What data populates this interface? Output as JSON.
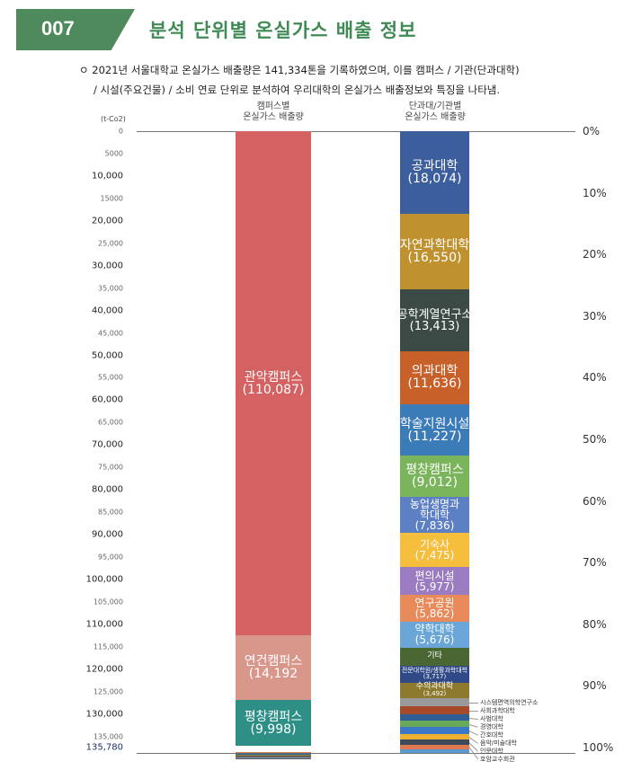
{
  "header": {
    "number": "007",
    "title": "분석 단위별 온실가스 배출 정보"
  },
  "intro": {
    "bullet": "ㅇ",
    "line1": "2021년 서울대학교 온실가스 배출량은 141,334톤을 기록하였으며, 이를 캠퍼스 / 기관(단과대학)",
    "line2": "/ 시설(주요건물) / 소비 연료 단위로 분석하여 우리대학의 온실가스 배출정보와 특징을 나타냄."
  },
  "chart_data": {
    "type": "stacked-bar",
    "unit": "(t-Co2)",
    "ylim": [
      0,
      135780
    ],
    "y_ticks": [
      "0",
      "5000",
      "10,000",
      "15000",
      "20,000",
      "25,000",
      "30,000",
      "35,000",
      "40,000",
      "45,000",
      "50,000",
      "55,000",
      "60,000",
      "65,000",
      "70,000",
      "75,000",
      "80,000",
      "85,000",
      "90,000",
      "95,000",
      "100,000",
      "105,000",
      "110,000",
      "115,000",
      "120,000",
      "125,000",
      "130,000",
      "135,000"
    ],
    "y_max_label": "135,780",
    "pct_ticks": [
      "0%",
      "10%",
      "20%",
      "30%",
      "40%",
      "50%",
      "60%",
      "70%",
      "80%",
      "90%",
      "100%"
    ],
    "bars": [
      {
        "title_line1": "캠퍼스별",
        "title_line2": "온실가스 배출량",
        "segments": [
          {
            "label": "관악캠퍼스",
            "value_label": "(110,087)",
            "value": 110087,
            "color": "#d46262"
          },
          {
            "label": "연건캠퍼스",
            "value_label": "(14,192",
            "value": 14192,
            "color": "#d9978c"
          },
          {
            "label": "평창캠퍼스",
            "value_label": "(9,998)",
            "value": 9998,
            "color": "#2e8f87"
          },
          {
            "label": "",
            "value_label": "",
            "value": 1300,
            "color": "#ffffff"
          },
          {
            "label": "",
            "value_label": "",
            "value": 300,
            "color": "#e0824f"
          },
          {
            "label": "",
            "value_label": "",
            "value": 250,
            "color": "#4a6a8a"
          },
          {
            "label": "",
            "value_label": "",
            "value": 200,
            "color": "#5f7a55"
          },
          {
            "label": "",
            "value_label": "",
            "value": 250,
            "color": "#a6783a"
          },
          {
            "label": "",
            "value_label": "",
            "value": 200,
            "color": "#2f3f6a"
          },
          {
            "label": "",
            "value_label": "",
            "value": 250,
            "color": "#a9b3bf"
          },
          {
            "label": "",
            "value_label": "",
            "value": 200,
            "color": "#3d4a5a"
          }
        ]
      },
      {
        "title_line1": "단과대/기관별",
        "title_line2": "온실가스 배출량",
        "segments": [
          {
            "label": "공과대학",
            "value_label": "(18,074)",
            "value": 18074,
            "color": "#3d5e9c"
          },
          {
            "label": "자연과학대학",
            "value_label": "(16,550)",
            "value": 16550,
            "color": "#c0922f"
          },
          {
            "label": "공학계열연구소",
            "value_label": "(13,413)",
            "value": 13413,
            "color": "#3b4a45"
          },
          {
            "label": "의과대학",
            "value_label": "(11,636)",
            "value": 11636,
            "color": "#c8602a"
          },
          {
            "label": "학술지원시설",
            "value_label": "(11,227)",
            "value": 11227,
            "color": "#3a7bb8"
          },
          {
            "label": "평창캠퍼스",
            "value_label": "(9,012)",
            "value": 9012,
            "color": "#7ab55b"
          },
          {
            "label": "농업생명과학대학",
            "value_label": "(7,836)",
            "value": 7836,
            "color": "#5d7fc4"
          },
          {
            "label": "기숙사",
            "value_label": "(7,475)",
            "value": 7475,
            "color": "#f5be3d"
          },
          {
            "label": "편의시설",
            "value_label": "(5,977)",
            "value": 5977,
            "color": "#9b7bc1"
          },
          {
            "label": "연구공원",
            "value_label": "(5,862)",
            "value": 5862,
            "color": "#e88a5a"
          },
          {
            "label": "약학대학",
            "value_label": "(5,676)",
            "value": 5676,
            "color": "#6aa6d8"
          },
          {
            "label": "기타",
            "value_label": "",
            "value": 3933,
            "color": "#4a6632"
          },
          {
            "label": "전문대학원/생활과학대학",
            "value_label": "(3,717)",
            "value": 3717,
            "color": "#2f4a86"
          },
          {
            "label": "수의과대학",
            "value_label": "(3,492)",
            "value": 3492,
            "color": "#8e7a2e"
          },
          {
            "label": "시스템면역의학연구소",
            "value_label": "",
            "value": 1750,
            "color": "#9a9a9a"
          },
          {
            "label": "사회과학대학",
            "value_label": "",
            "value": 1750,
            "color": "#a74a2a"
          },
          {
            "label": "사범대학",
            "value_label": "",
            "value": 1400,
            "color": "#2f5e96"
          },
          {
            "label": "경영대학",
            "value_label": "",
            "value": 1400,
            "color": "#6aa85a"
          },
          {
            "label": "간호대학",
            "value_label": "",
            "value": 1400,
            "color": "#3a78c8"
          },
          {
            "label": "음악/미술대학",
            "value_label": "",
            "value": 1200,
            "color": "#f0b030"
          },
          {
            "label": "인문대학",
            "value_label": "",
            "value": 1200,
            "color": "#3d4a5a"
          },
          {
            "label": "호암교수회관",
            "value_label": "",
            "value": 1000,
            "color": "#e07850"
          },
          {
            "label": "",
            "value_label": "",
            "value": 800,
            "color": "#5a9ad0"
          }
        ]
      }
    ]
  }
}
